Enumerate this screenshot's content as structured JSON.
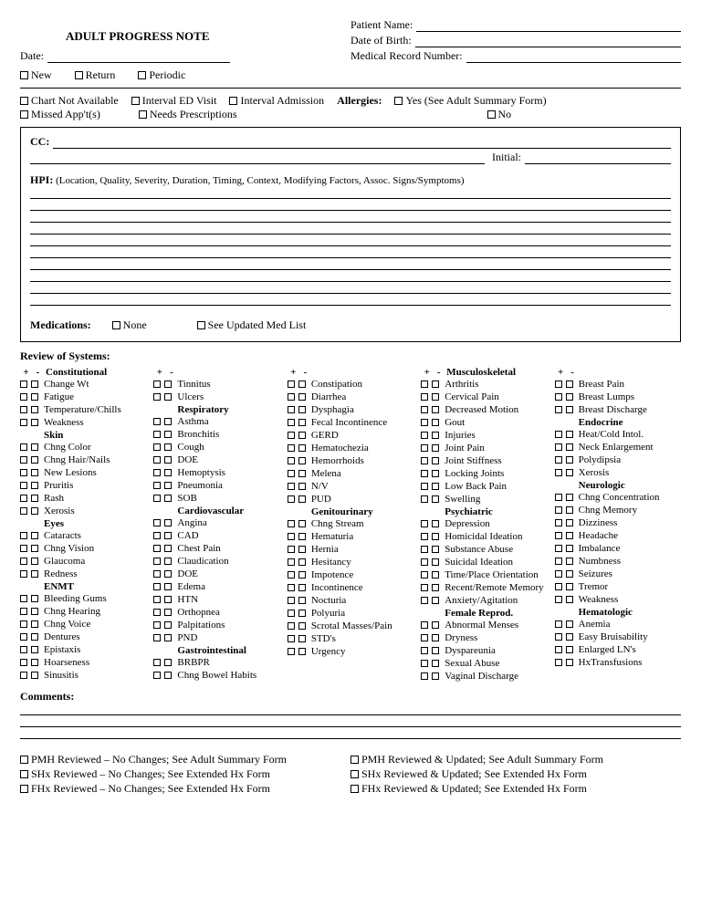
{
  "title": "ADULT PROGRESS NOTE",
  "header": {
    "patient_name": "Patient Name:",
    "dob": "Date of Birth:",
    "mrn": "Medical Record Number:",
    "date": "Date:"
  },
  "visit_type": {
    "new": "New",
    "return": "Return",
    "periodic": "Periodic"
  },
  "flags": {
    "chart_na": "Chart Not Available",
    "interval_ed": "Interval ED Visit",
    "interval_adm": "Interval Admission",
    "missed": "Missed App't(s)",
    "needs_rx": "Needs Prescriptions",
    "allergies_label": "Allergies:",
    "allergies_yes": "Yes (See Adult Summary Form)",
    "allergies_no": "No"
  },
  "cc": {
    "label": "CC:",
    "initial": "Initial:"
  },
  "hpi": {
    "label": "HPI:",
    "desc": "(Location, Quality, Severity, Duration, Timing, Context, Modifying Factors, Assoc. Signs/Symptoms)"
  },
  "meds": {
    "label": "Medications:",
    "none": "None",
    "updated": "See Updated Med List"
  },
  "ros_title": "Review of Systems:",
  "ros": {
    "col1": [
      {
        "h": "Constitutional"
      },
      "Change Wt",
      "Fatigue",
      "Temperature/Chills",
      "Weakness",
      {
        "h": "Skin"
      },
      "Chng Color",
      "Chng Hair/Nails",
      "New Lesions",
      "Pruritis",
      "Rash",
      "Xerosis",
      {
        "h": "Eyes"
      },
      "Cataracts",
      "Chng Vision",
      "Glaucoma",
      "Redness",
      {
        "h": "ENMT"
      },
      "Bleeding Gums",
      "Chng Hearing",
      "Chng Voice",
      "Dentures",
      "Epistaxis",
      "Hoarseness",
      "Sinusitis"
    ],
    "col2": [
      {
        "h": ""
      },
      "Tinnitus",
      "Ulcers",
      {
        "h": "Respiratory"
      },
      "Asthma",
      "Bronchitis",
      "Cough",
      "DOE",
      "Hemoptysis",
      "Pneumonia",
      "SOB",
      {
        "h": "Cardiovascular"
      },
      "Angina",
      "CAD",
      "Chest Pain",
      "Claudication",
      "DOE",
      "Edema",
      "HTN",
      "Orthopnea",
      "Palpitations",
      "PND",
      {
        "h": "Gastrointestinal"
      },
      "BRBPR",
      "Chng Bowel Habits"
    ],
    "col3": [
      {
        "h": ""
      },
      "Constipation",
      "Diarrhea",
      "Dysphagia",
      "Fecal Incontinence",
      "GERD",
      "Hematochezia",
      "Hemorrhoids",
      "Melena",
      "N/V",
      "PUD",
      {
        "h": "Genitourinary"
      },
      "Chng Stream",
      "Hematuria",
      "Hernia",
      "Hesitancy",
      "Impotence",
      "Incontinence",
      "Nocturia",
      "Polyuria",
      "Scrotal Masses/Pain",
      "STD's",
      "Urgency"
    ],
    "col4": [
      {
        "h": "Musculoskeletal"
      },
      "Arthritis",
      "Cervical Pain",
      "Decreased Motion",
      "Gout",
      "Injuries",
      "Joint Pain",
      "Joint Stiffness",
      "Locking Joints",
      "Low Back Pain",
      "Swelling",
      {
        "h": "Psychiatric"
      },
      "Depression",
      "Homicidal Ideation",
      "Substance Abuse",
      "Suicidal Ideation",
      "Time/Place Orientation",
      "Recent/Remote Memory",
      "Anxiety/Agitation",
      {
        "h": "Female Reprod."
      },
      "Abnormal Menses",
      "Dryness",
      "Dyspareunia",
      "Sexual Abuse",
      "Vaginal Discharge"
    ],
    "col5": [
      {
        "h": ""
      },
      "Breast Pain",
      "Breast Lumps",
      "Breast Discharge",
      {
        "h": "Endocrine"
      },
      "Heat/Cold Intol.",
      "Neck Enlargement",
      "Polydipsia",
      "Xerosis",
      {
        "h": "Neurologic"
      },
      "Chng Concentration",
      "Chng Memory",
      "Dizziness",
      "Headache",
      "Imbalance",
      "Numbness",
      "Seizures",
      "Tremor",
      "Weakness",
      {
        "h": "Hematologic"
      },
      "Anemia",
      "Easy Bruisability",
      "Enlarged LN's",
      "HxTransfusions"
    ]
  },
  "comments": "Comments:",
  "footer": {
    "left": [
      "PMH Reviewed – No Changes; See Adult Summary Form",
      "SHx Reviewed – No Changes; See Extended Hx Form",
      "FHx Reviewed – No Changes; See Extended Hx Form"
    ],
    "right": [
      "PMH Reviewed & Updated; See Adult Summary Form",
      "SHx Reviewed & Updated; See Extended Hx Form",
      "FHx Reviewed & Updated; See Extended Hx Form"
    ]
  }
}
